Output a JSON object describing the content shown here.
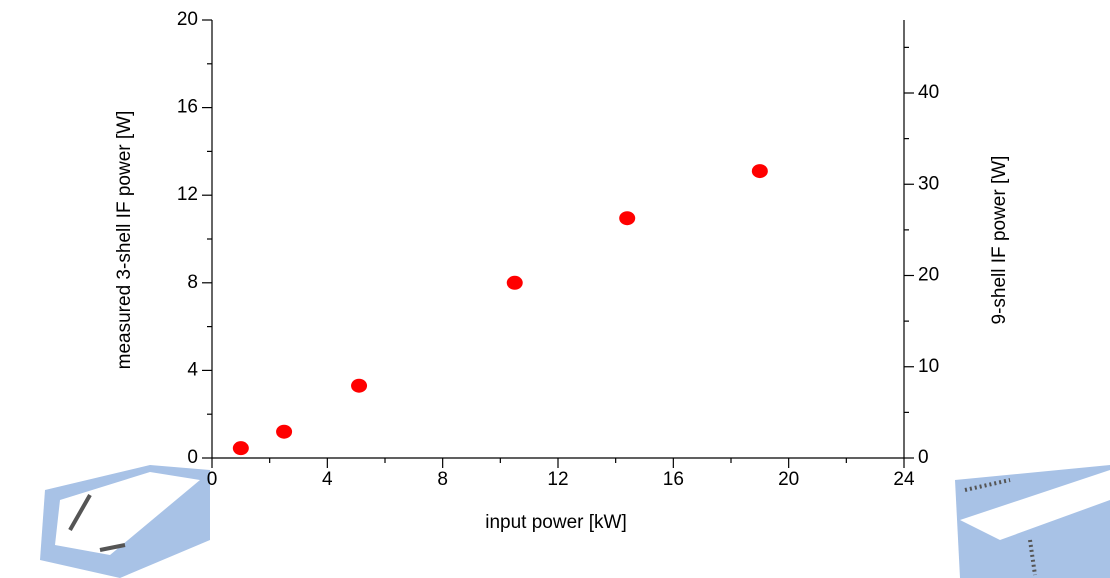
{
  "chart_data": {
    "type": "scatter",
    "x_label": "input power [kW]",
    "y_label": "measured 3-shell IF power [W]",
    "y2_label": "9-shell IF power [W]",
    "series": [
      {
        "name": "measured",
        "color": "#ff0000",
        "x": [
          1.0,
          2.5,
          5.1,
          10.5,
          14.4,
          19.0
        ],
        "values": [
          0.45,
          1.2,
          3.3,
          8.0,
          10.95,
          13.1
        ]
      }
    ],
    "xlim": [
      0,
      24
    ],
    "xticks": [
      0,
      4,
      8,
      12,
      16,
      20,
      24
    ],
    "ylim": [
      0,
      20
    ],
    "yticks": [
      0,
      4,
      8,
      12,
      16,
      20
    ],
    "y2lim": [
      0,
      48
    ],
    "y2ticks": [
      0,
      10,
      20,
      30,
      40
    ]
  }
}
